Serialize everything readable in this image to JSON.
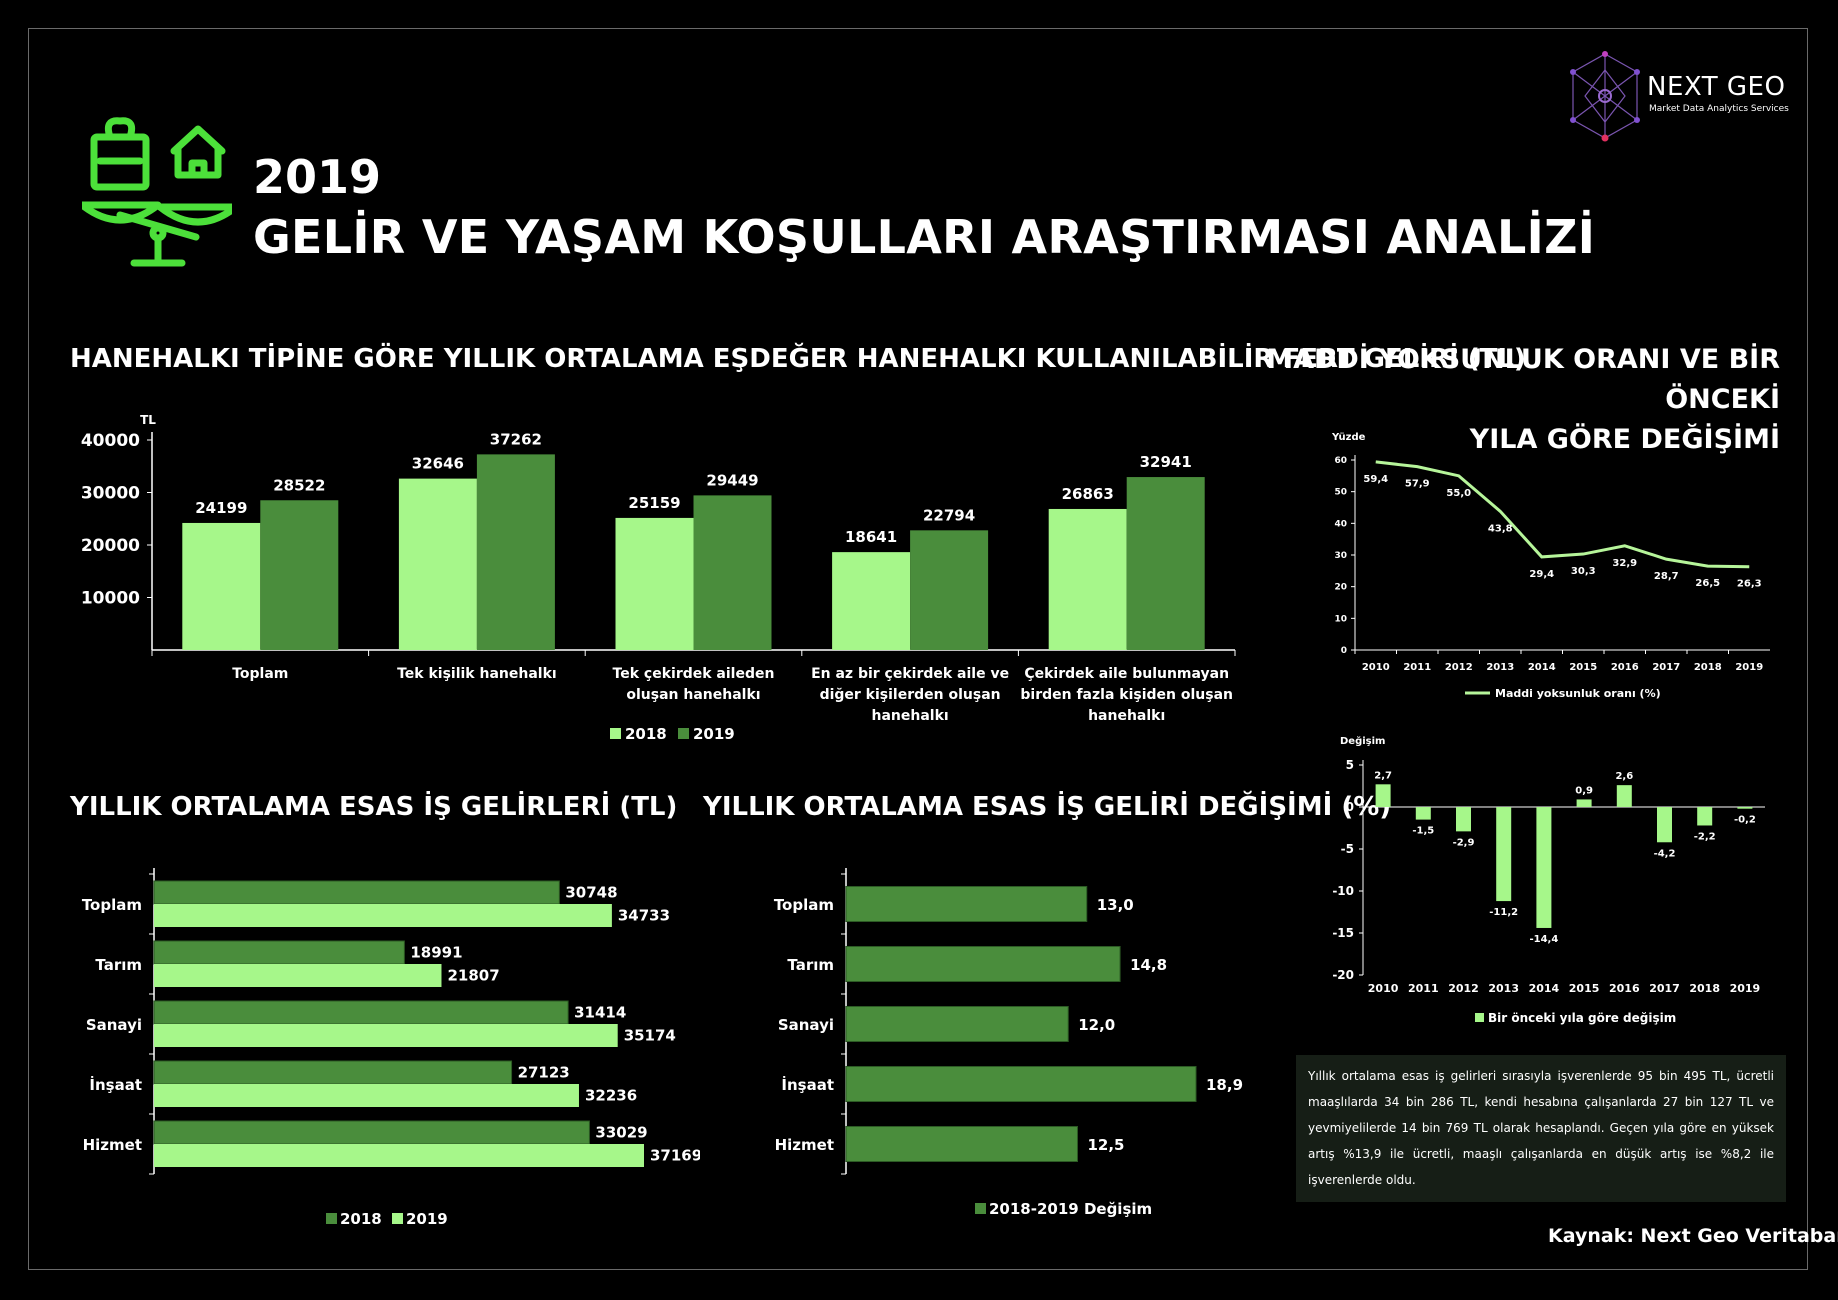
{
  "header": {
    "year": "2019",
    "title": "GELİR VE YAŞAM KOŞULLARI ARAŞTIRMASI ANALİZİ",
    "logo_name": "NEXT GEO",
    "logo_tagline": "Market Data Analytics Services",
    "icon": "balance-scale-house-icon"
  },
  "colors": {
    "light_green": "#a6f78a",
    "dark_green": "#4a8d3c",
    "icon_green": "#4ce03a",
    "line_green": "#b6f59a"
  },
  "sections": {
    "household_title": "HANEHALKI TİPİNE GÖRE YILLIK ORTALAMA EŞDEĞER HANEHALKI KULLANILABİLİR FERT GELİRİ (TL)",
    "deprivation_title_1": "MADDİ YOKSUNLUK ORANI VE BİR ÖNCEKİ",
    "deprivation_title_2": "YILA GÖRE DEĞİŞİMİ",
    "work_income_title": "YILLIK ORTALAMA ESAS İŞ GELİRLERİ (TL)",
    "work_change_title": "YILLIK ORTALAMA ESAS İŞ GELİRİ DEĞİŞİMİ (%)"
  },
  "note": "Yıllık ortalama esas iş gelirleri sırasıyla işverenlerde 95 bin 495 TL, ücretli maaşlılarda 34 bin 286 TL, kendi hesabına çalışanlarda 27 bin 127 TL ve yevmiyelilerde 14 bin 769 TL olarak hesaplandı. Geçen yıla göre en yüksek artış %13,9 ile ücretli, maaşlı çalışanlarda en düşük artış ise %8,2 ile işverenlerde oldu.",
  "source": "Kaynak: Next Geo Veritabanı",
  "chart_data": [
    {
      "type": "bar",
      "ylabel": "TL",
      "ylim": [
        0,
        40000
      ],
      "yticks": [
        10000,
        20000,
        30000,
        40000
      ],
      "categories": [
        [
          "Toplam"
        ],
        [
          "Tek kişilik hanehalkı"
        ],
        [
          "Tek çekirdek aileden",
          "oluşan hanehalkı"
        ],
        [
          "En az bir çekirdek aile ve",
          "diğer kişilerden oluşan",
          "hanehalkı"
        ],
        [
          "Çekirdek aile bulunmayan",
          "birden fazla kişiden oluşan",
          "hanehalkı"
        ]
      ],
      "series": [
        {
          "name": "2018",
          "values": [
            24199,
            32646,
            25159,
            18641,
            26863
          ]
        },
        {
          "name": "2019",
          "values": [
            28522,
            37262,
            29449,
            22794,
            32941
          ]
        }
      ],
      "legend": "bottom"
    },
    {
      "type": "line",
      "ylabel": "Yüzde",
      "ylim": [
        0,
        60
      ],
      "yticks": [
        0,
        10,
        20,
        30,
        40,
        50,
        60
      ],
      "x": [
        "2010",
        "2011",
        "2012",
        "2013",
        "2014",
        "2015",
        "2016",
        "2017",
        "2018",
        "2019"
      ],
      "series": [
        {
          "name": "Maddi yoksunluk oranı (%)",
          "values": [
            59.4,
            57.9,
            55.0,
            43.8,
            29.4,
            30.3,
            32.9,
            28.7,
            26.5,
            26.3
          ],
          "labels": [
            "59,4",
            "57,9",
            "55,0",
            "43,8",
            "29,4",
            "30,3",
            "32,9",
            "28,7",
            "26,5",
            "26,3"
          ]
        }
      ],
      "legend": "bottom"
    },
    {
      "type": "bar",
      "ylabel": "Değişim",
      "ylim": [
        -20,
        5
      ],
      "yticks": [
        5,
        0,
        -5,
        -10,
        -15,
        -20
      ],
      "x": [
        "2010",
        "2011",
        "2012",
        "2013",
        "2014",
        "2015",
        "2016",
        "2017",
        "2018",
        "2019"
      ],
      "series": [
        {
          "name": "Bir önceki yıla göre değişim",
          "values": [
            2.7,
            -1.5,
            -2.9,
            -11.2,
            -14.4,
            0.9,
            2.6,
            -4.2,
            -2.2,
            -0.2
          ],
          "labels": [
            "2,7",
            "-1,5",
            "-2,9",
            "-11,2",
            "-14,4",
            "0,9",
            "2,6",
            "-4,2",
            "-2,2",
            "-0,2"
          ]
        }
      ],
      "legend": "bottom"
    },
    {
      "type": "bar",
      "orientation": "horizontal",
      "categories": [
        "Toplam",
        "Tarım",
        "Sanayi",
        "İnşaat",
        "Hizmet"
      ],
      "series": [
        {
          "name": "2018",
          "values": [
            30748,
            18991,
            31414,
            27123,
            33029
          ]
        },
        {
          "name": "2019",
          "values": [
            34733,
            21807,
            35174,
            32236,
            37169
          ]
        }
      ],
      "legend": "bottom"
    },
    {
      "type": "bar",
      "orientation": "horizontal",
      "categories": [
        "Toplam",
        "Tarım",
        "Sanayi",
        "İnşaat",
        "Hizmet"
      ],
      "series": [
        {
          "name": "2018-2019 Değişim",
          "values": [
            13.0,
            14.8,
            12.0,
            18.9,
            12.5
          ],
          "labels": [
            "13,0",
            "14,8",
            "12,0",
            "18,9",
            "12,5"
          ]
        }
      ],
      "legend": "bottom"
    }
  ]
}
